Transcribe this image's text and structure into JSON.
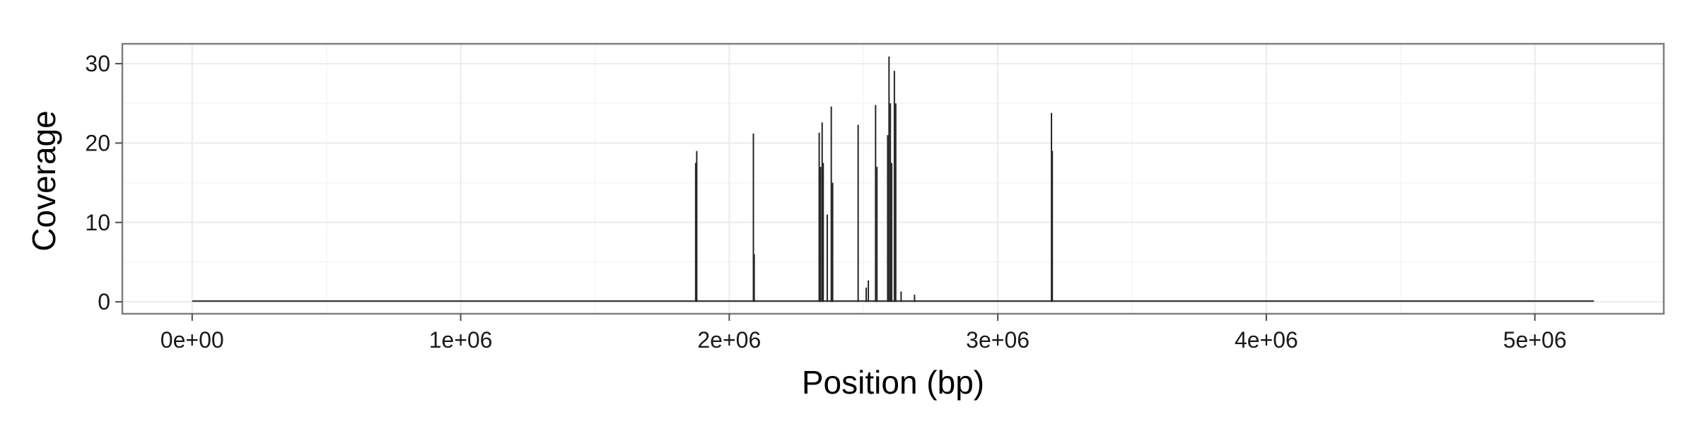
{
  "chart_data": {
    "type": "bar",
    "xlabel": "Position (bp)",
    "ylabel": "Coverage",
    "xlim": [
      -260000,
      5480000
    ],
    "ylim": [
      -1.5,
      32.5
    ],
    "x_ticks": [
      {
        "value": 0,
        "label": "0e+00"
      },
      {
        "value": 1000000,
        "label": "1e+06"
      },
      {
        "value": 2000000,
        "label": "2e+06"
      },
      {
        "value": 3000000,
        "label": "3e+06"
      },
      {
        "value": 4000000,
        "label": "4e+06"
      },
      {
        "value": 5000000,
        "label": "5e+06"
      }
    ],
    "y_ticks": [
      {
        "value": 0,
        "label": "0"
      },
      {
        "value": 10,
        "label": "10"
      },
      {
        "value": 20,
        "label": "20"
      },
      {
        "value": 30,
        "label": "30"
      }
    ],
    "grid": true,
    "baseline_range": [
      0,
      5220000
    ],
    "series": [
      {
        "x": [
          1875000,
          1879000,
          2090000,
          2093000,
          2335000,
          2340000,
          2346000,
          2350000,
          2365000,
          2380000,
          2385000,
          2480000,
          2510000,
          2518000,
          2545000,
          2550000,
          2590000,
          2595000,
          2600000,
          2605000,
          2615000,
          2620000,
          2640000,
          2690000,
          3200000,
          3203000
        ],
        "y": [
          17.5,
          19.0,
          21.2,
          6.0,
          21.3,
          17.0,
          22.6,
          17.5,
          11.0,
          24.6,
          15.0,
          22.3,
          1.8,
          2.7,
          24.8,
          17.0,
          21.0,
          30.9,
          25.0,
          17.5,
          29.1,
          25.0,
          1.3,
          0.9,
          23.8,
          19.0
        ]
      }
    ],
    "colors": {
      "bar": "#262626",
      "panel_border": "#7f7f7f",
      "grid_major": "#ebebeb",
      "grid_minor": "#f5f5f5",
      "tick": "#4d4d4d"
    }
  }
}
